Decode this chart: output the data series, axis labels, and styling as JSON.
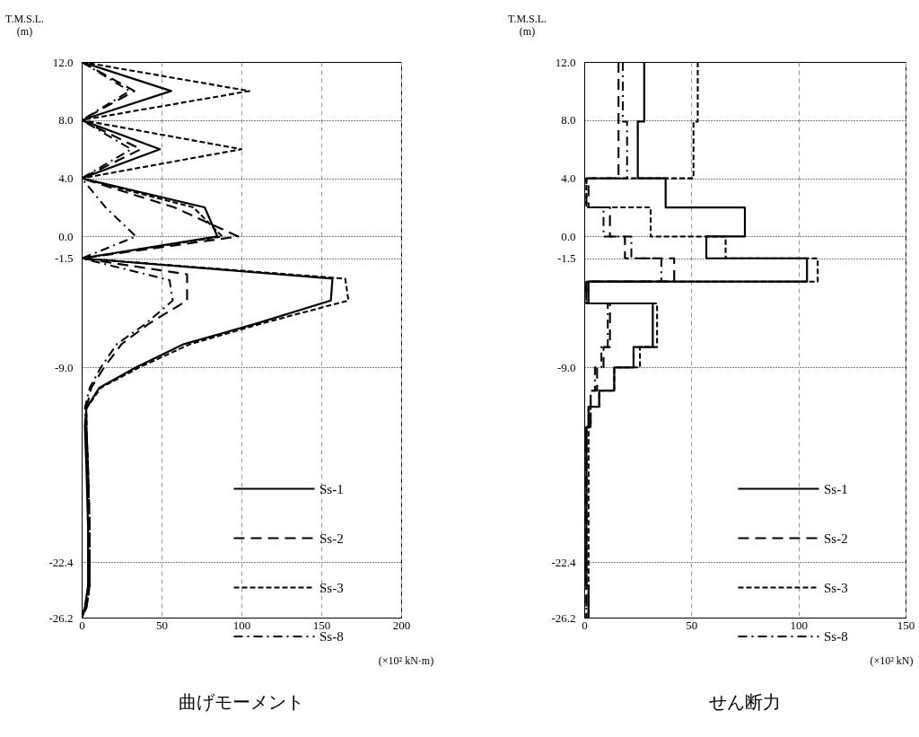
{
  "chart_data": [
    {
      "type": "line",
      "title": "曲げモーメント",
      "xlabel": "(×10² kN·m)",
      "ylabel": "T.M.S.L.\n(m)",
      "xlim": [
        0,
        200
      ],
      "xticks": [
        0,
        50,
        100,
        150,
        200
      ],
      "ylim": [
        -26.2,
        12
      ],
      "yticks": [
        {
          "value": 12,
          "label": "12.0"
        },
        {
          "value": 8,
          "label": "8.0"
        },
        {
          "value": 4,
          "label": "4.0"
        },
        {
          "value": 0,
          "label": "0.0"
        },
        -1.5,
        {
          "value": -9,
          "label": "-9.0"
        },
        -22.4,
        -26.2
      ],
      "grid": true,
      "legend": "bottom right",
      "series": [
        {
          "name": "Ss-1",
          "color": "#000000",
          "line_style": "solid",
          "values": [
            12,
            10,
            8,
            6,
            4,
            2,
            0,
            -1.5,
            -2.9,
            -4.4,
            -6,
            -7.4,
            -9,
            -10.4,
            -11.8,
            -13,
            -16,
            -20,
            -24,
            -25.5,
            -26.2
          ],
          "x": [
            0,
            56,
            0,
            49,
            0,
            77,
            85,
            0,
            157,
            156,
            109,
            64,
            34,
            11,
            3,
            2,
            3,
            4,
            4,
            2,
            0
          ]
        },
        {
          "name": "Ss-2",
          "color": "#000000",
          "line_style": "dashed",
          "values": [
            12,
            10,
            8,
            6,
            4,
            2,
            0,
            -1.5,
            -2.6,
            -4.4,
            -6,
            -7.4,
            -9,
            -10.4,
            -11.8,
            -13,
            -16,
            -20,
            -24,
            -25.5,
            -26.2
          ],
          "x": [
            0,
            33,
            0,
            37,
            0,
            58,
            98,
            0,
            66,
            66,
            42,
            25,
            14,
            6,
            3,
            3,
            4,
            5,
            5,
            3,
            0
          ]
        },
        {
          "name": "Ss-3",
          "color": "#000000",
          "line_style": "dotted",
          "values": [
            12,
            10,
            8,
            6,
            4,
            2,
            0,
            -1.5,
            -2.9,
            -4.4,
            -6,
            -7.4,
            -9,
            -10.4,
            -11.8,
            -13,
            -16,
            -20,
            -24,
            -25.5,
            -26.2
          ],
          "x": [
            0,
            105,
            0,
            100,
            0,
            70,
            88,
            0,
            165,
            167,
            112,
            68,
            36,
            12,
            3,
            3,
            4,
            5,
            5,
            3,
            0
          ]
        },
        {
          "name": "Ss-8",
          "color": "#000000",
          "line_style": "dashdot",
          "values": [
            12,
            10,
            8,
            6,
            4,
            2,
            0,
            -1.5,
            -3,
            -4.4,
            -6,
            -7.4,
            -9,
            -10.4,
            -11.8,
            -13,
            -16,
            -20,
            -24,
            -25.5,
            -26.2
          ],
          "x": [
            0,
            30,
            0,
            31,
            0,
            15,
            34,
            0,
            55,
            57,
            40,
            22,
            12,
            5,
            2,
            3,
            4,
            5,
            5,
            3,
            0
          ]
        }
      ]
    },
    {
      "type": "line",
      "title": "せん断力",
      "xlabel": "(×10² kN)",
      "ylabel": "T.M.S.L.\n(m)",
      "xlim": [
        0,
        150
      ],
      "xticks": [
        0,
        50,
        100,
        150
      ],
      "ylim": [
        -26.2,
        12
      ],
      "yticks": [
        {
          "value": 12,
          "label": "12.0"
        },
        {
          "value": 8,
          "label": "8.0"
        },
        {
          "value": 4,
          "label": "4.0"
        },
        {
          "value": 0,
          "label": "0.0"
        },
        -1.5,
        {
          "value": -9,
          "label": "-9.0"
        },
        -22.4,
        -26.2
      ],
      "grid": true,
      "legend": "bottom right",
      "series": [
        {
          "name": "Ss-1",
          "color": "#000000",
          "line_style": "solid",
          "values": [
            12,
            7.9,
            7.9,
            4,
            4,
            2,
            2,
            0,
            0,
            -1.5,
            -1.5,
            -3.1,
            -3.1,
            -4.6,
            -4.6,
            -7.6,
            -7.6,
            -9,
            -9,
            -10.6,
            -10.6,
            -11.7,
            -11.7,
            -13.1,
            -13.1,
            -24,
            -24,
            -26.2
          ],
          "x": [
            28,
            28,
            25,
            25,
            38,
            38,
            75,
            75,
            57,
            57,
            104,
            104,
            2,
            2,
            32,
            32,
            23,
            23,
            14,
            14,
            7,
            7,
            2,
            2,
            1,
            1,
            2,
            2
          ]
        },
        {
          "name": "Ss-2",
          "color": "#000000",
          "line_style": "dashed",
          "values": [
            12,
            4,
            4,
            2,
            2,
            0,
            0,
            -1.5,
            -1.5,
            -3.1,
            -3.1,
            -4.6,
            -4.6,
            -7.6,
            -7.6,
            -9,
            -9,
            -10.6,
            -10.6,
            -13.1,
            -13.1,
            -26.2
          ],
          "x": [
            16,
            16,
            2,
            2,
            12,
            12,
            19,
            19,
            42,
            42,
            1,
            1,
            12,
            12,
            9,
            9,
            6,
            6,
            3,
            3,
            1,
            1
          ]
        },
        {
          "name": "Ss-3",
          "color": "#000000",
          "line_style": "dotted",
          "values": [
            12,
            7.9,
            7.9,
            4,
            4,
            2,
            2,
            0,
            0,
            -1.5,
            -1.5,
            -3.1,
            -3.1,
            -4.6,
            -4.6,
            -7.6,
            -7.6,
            -9,
            -9,
            -10.6,
            -10.6,
            -11.7,
            -11.7,
            -26.2
          ],
          "x": [
            53,
            53,
            51,
            51,
            1,
            1,
            31,
            31,
            66,
            66,
            109,
            109,
            1,
            1,
            34,
            34,
            26,
            26,
            14,
            14,
            7,
            7,
            2,
            2
          ]
        },
        {
          "name": "Ss-8",
          "color": "#000000",
          "line_style": "dashdot",
          "values": [
            12,
            7.9,
            7.9,
            4,
            4,
            2,
            2,
            0,
            0,
            -1.5,
            -1.5,
            -3.1,
            -3.1,
            -4.6,
            -4.6,
            -7.6,
            -7.6,
            -9,
            -9,
            -10.6,
            -10.6,
            -13.1,
            -13.1,
            -26.2
          ],
          "x": [
            18,
            18,
            20,
            20,
            1,
            1,
            9,
            9,
            22,
            22,
            36,
            36,
            1,
            1,
            11,
            11,
            8,
            8,
            5,
            5,
            3,
            3,
            1,
            1
          ]
        }
      ]
    }
  ]
}
